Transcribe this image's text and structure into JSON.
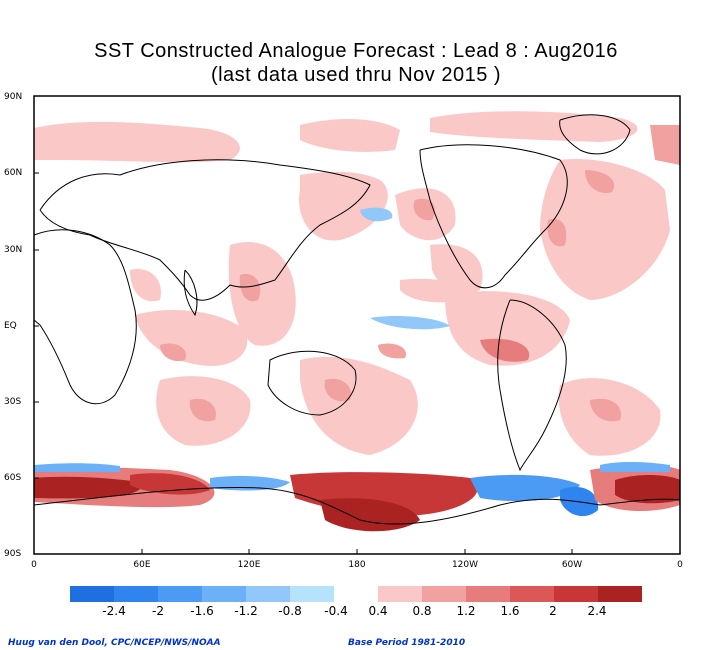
{
  "title_line1": "SST Constructed Analogue Forecast : Lead 8 : Aug2016",
  "title_line2": "(last data used thru Nov 2015 )",
  "lat_labels": [
    "90N",
    "60N",
    "30N",
    "EQ",
    "30S",
    "60S",
    "90S"
  ],
  "lon_labels": [
    "0",
    "60E",
    "120E",
    "180",
    "120W",
    "60W",
    "0"
  ],
  "legend": {
    "neg_colors": [
      "#1e6fe0",
      "#2f84ee",
      "#4b9bf5",
      "#6cb0f7",
      "#92c7fa",
      "#b7e2fb"
    ],
    "neg_labels": [
      "-2.4",
      "-2",
      "-1.6",
      "-1.2",
      "-0.8",
      "-0.4"
    ],
    "pos_colors": [
      "#fbc8c8",
      "#f2a1a1",
      "#e77c7c",
      "#da5858",
      "#c83737",
      "#ab2222"
    ],
    "pos_labels": [
      "0.4",
      "0.8",
      "1.2",
      "1.6",
      "2",
      "2.4"
    ]
  },
  "footer_left": "Huug van den Dool, CPC/NCEP/NWS/NOAA",
  "footer_right": "Base Period 1981-2010"
}
